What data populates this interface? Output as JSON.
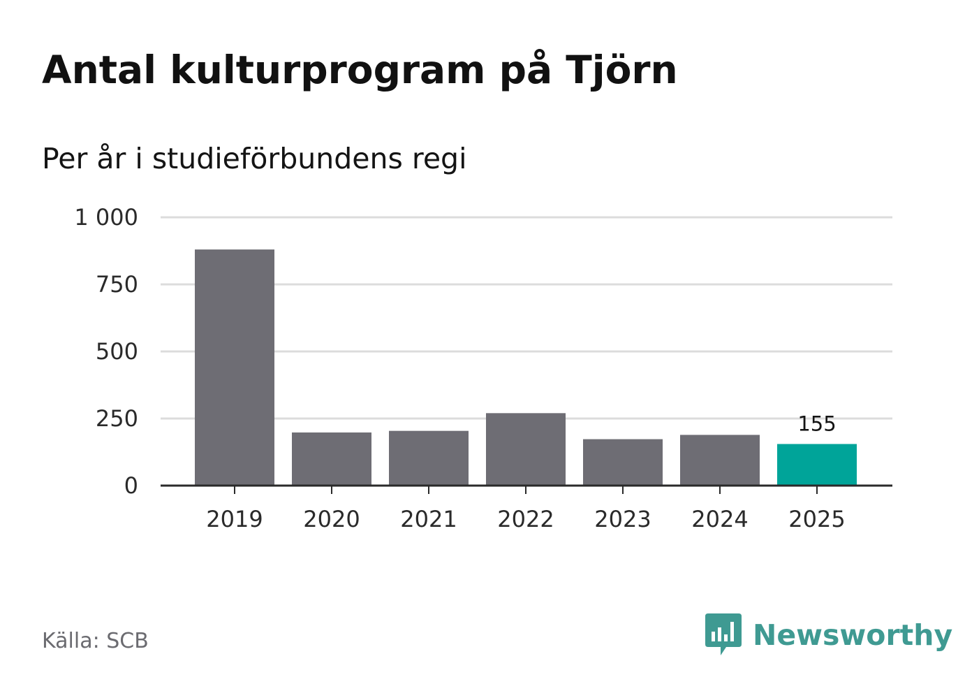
{
  "title": "Antal kulturprogram på Tjörn",
  "subtitle": "Per år i studieförbundens regi",
  "source": "Källa: SCB",
  "brand": {
    "name": "Newsworthy",
    "icon": "newsworthy-logo-icon",
    "color": "#3f9a92"
  },
  "colors": {
    "bar": "#6e6d74",
    "highlight": "#00a499",
    "grid": "#dcdcdc",
    "axis": "#2a2a2a"
  },
  "chart_data": {
    "type": "bar",
    "categories": [
      "2019",
      "2020",
      "2021",
      "2022",
      "2023",
      "2024",
      "2025"
    ],
    "values": [
      880,
      198,
      204,
      270,
      173,
      189,
      155
    ],
    "highlight_index": 6,
    "data_labels": [
      {
        "index": 6,
        "text": "155"
      }
    ],
    "y_ticks": [
      {
        "value": 0,
        "label": "0"
      },
      {
        "value": 250,
        "label": "250"
      },
      {
        "value": 500,
        "label": "500"
      },
      {
        "value": 750,
        "label": "750"
      },
      {
        "value": 1000,
        "label": "1 000"
      }
    ],
    "ylim": [
      0,
      1000
    ],
    "xlabel": "",
    "ylabel": "",
    "grid": true,
    "legend": "none"
  }
}
